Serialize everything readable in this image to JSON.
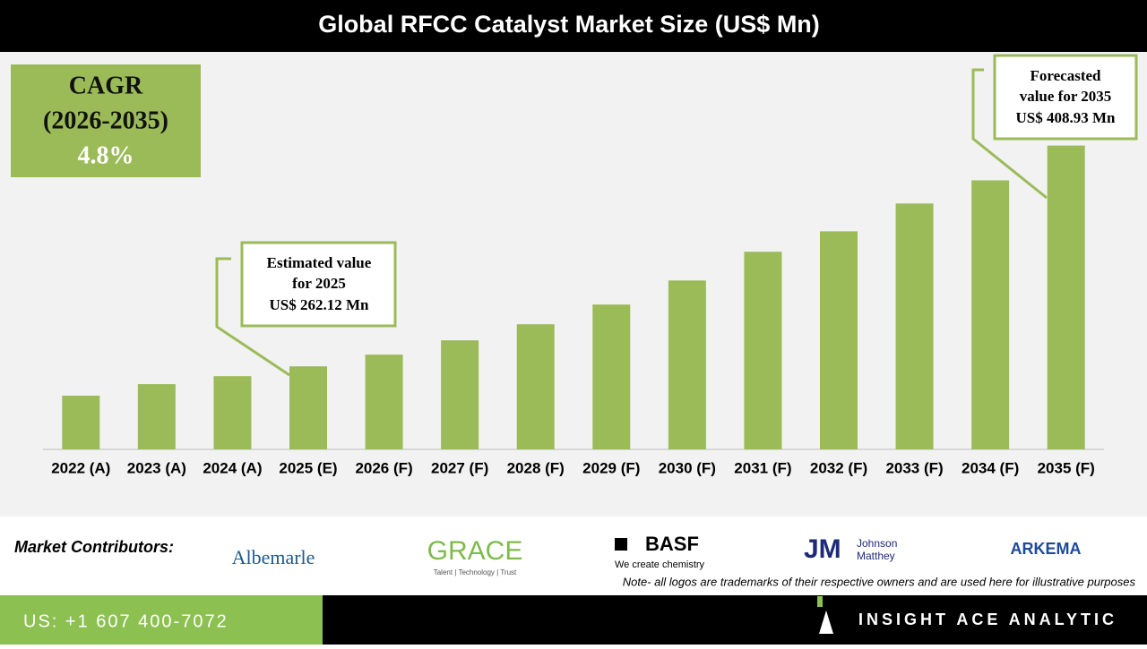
{
  "chart_data": {
    "type": "bar",
    "title": "Global RFCC Catalyst Market Size (US$ Mn)",
    "categories": [
      "2022 (A)",
      "2023 (A)",
      "2024 (A)",
      "2025 (E)",
      "2026 (F)",
      "2027 (F)",
      "2028 (F)",
      "2029 (F)",
      "2030 (F)",
      "2031 (F)",
      "2032 (F)",
      "2033 (F)",
      "2034 (F)",
      "2035 (F)"
    ],
    "values": [
      242.6,
      250.3,
      255.6,
      262.12,
      269.9,
      279.4,
      290.1,
      303.2,
      319.2,
      338.3,
      351.9,
      370.4,
      385.8,
      408.93
    ],
    "color": "#9bbb59",
    "ylim": [
      206.9,
      470
    ],
    "cagr": [
      "CAGR",
      "(2026-2035)",
      "4.8%"
    ],
    "annotations": [
      {
        "lines": [
          "Estimated value",
          "for 2025",
          "US$ 262.12 Mn"
        ]
      },
      {
        "lines": [
          "Forecasted",
          "value for 2035",
          "US$ 408.93 Mn"
        ]
      }
    ]
  },
  "contributors": {
    "label": "Market Contributors:",
    "logos": [
      "Albemarle",
      "GRACE",
      "Talent | Technology | Trust",
      "BASF",
      "We create chemistry",
      "JM",
      "Johnson",
      "Matthey",
      "ARKEMA"
    ],
    "note": "Note- all logos are trademarks of their respective owners and are used here for illustrative purposes"
  },
  "footer": {
    "phone": "US: +1 607 400-7072",
    "brand": "INSIGHT ACE ANALYTIC"
  }
}
